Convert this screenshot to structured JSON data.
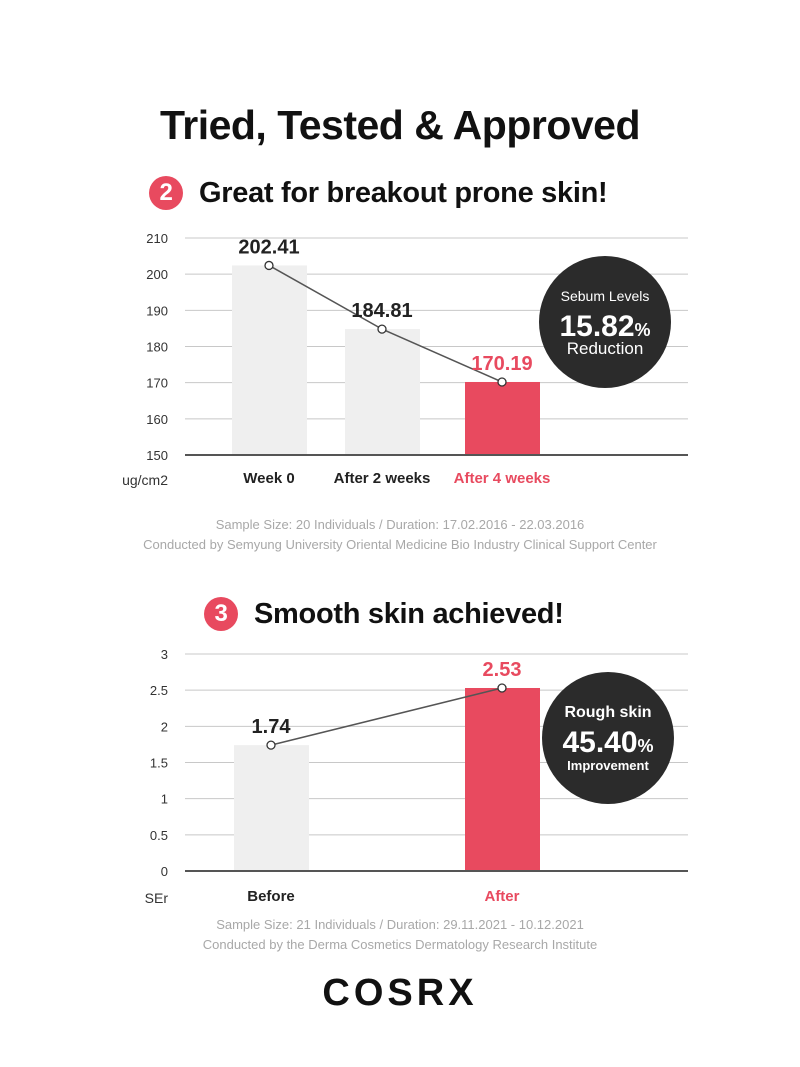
{
  "title": "Tried, Tested & Approved",
  "colors": {
    "accent": "#e84a5f",
    "bar_grey": "#efefef",
    "badge": "#2b2b2b",
    "grid": "#c8c8c8",
    "axis": "#555555"
  },
  "chart_data": [
    {
      "type": "bar",
      "section_number": "2",
      "title": "Great for breakout prone skin!",
      "ylabel": "ug/cm2",
      "ylim": [
        150,
        210
      ],
      "yticks": [
        "210",
        "200",
        "190",
        "180",
        "170",
        "160",
        "150"
      ],
      "ytick_values": [
        210,
        200,
        190,
        180,
        170,
        160,
        150
      ],
      "grid": true,
      "categories": [
        "Week 0",
        "After 2 weeks",
        "After 4 weeks"
      ],
      "values": [
        202.41,
        184.81,
        170.19
      ],
      "value_labels": [
        "202.41",
        "184.81",
        "170.19"
      ],
      "highlight_index": 2,
      "line_overlay": true,
      "badge": {
        "line1": "Sebum Levels",
        "value": "15.82",
        "unit": "%",
        "line3": "Reduction"
      },
      "notes": [
        "Sample Size: 20 Individuals  /  Duration: 17.02.2016 - 22.03.2016",
        "Conducted by Semyung University Oriental Medicine Bio Industry Clinical Support Center"
      ]
    },
    {
      "type": "bar",
      "section_number": "3",
      "title": "Smooth skin achieved!",
      "ylabel": "SEr",
      "ylim": [
        0,
        3
      ],
      "yticks": [
        "3",
        "2.5",
        "2",
        "1.5",
        "1",
        "0.5",
        "0"
      ],
      "ytick_values": [
        3,
        2.5,
        2,
        1.5,
        1,
        0.5,
        0
      ],
      "grid": true,
      "categories": [
        "Before",
        "After"
      ],
      "values": [
        1.74,
        2.53
      ],
      "value_labels": [
        "1.74",
        "2.53"
      ],
      "highlight_index": 1,
      "line_overlay": true,
      "badge": {
        "line1": "Rough skin",
        "value": "45.40",
        "unit": "%",
        "line3": "Improvement"
      },
      "notes": [
        "Sample Size: 21 Individuals  /  Duration: 29.11.2021 - 10.12.2021",
        "Conducted by the Derma Cosmetics Dermatology Research Institute"
      ]
    }
  ],
  "brand": "COSRX"
}
